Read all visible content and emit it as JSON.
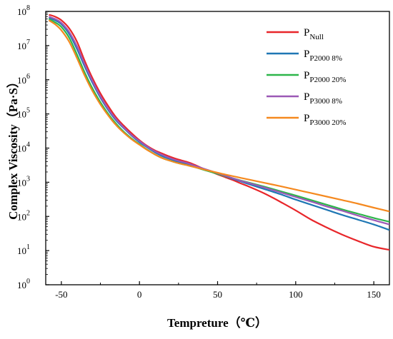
{
  "chart_data": {
    "type": "line",
    "xlabel": "Tempreture（℃）",
    "ylabel": "Complex Viscosity（Pa·S）",
    "xlim": [
      -60,
      160
    ],
    "ylim_log10": [
      0,
      8
    ],
    "y_scale": "log",
    "grid": false,
    "legend_position": "top-right",
    "x_ticks": [
      {
        "value": -50,
        "label": "-50"
      },
      {
        "value": 0,
        "label": "0"
      },
      {
        "value": 50,
        "label": "50"
      },
      {
        "value": 100,
        "label": "100"
      },
      {
        "value": 150,
        "label": "150"
      }
    ],
    "y_ticks": [
      {
        "value": 0,
        "label": "10",
        "sup": "0"
      },
      {
        "value": 1,
        "label": "10",
        "sup": "1"
      },
      {
        "value": 2,
        "label": "10",
        "sup": "2"
      },
      {
        "value": 3,
        "label": "10",
        "sup": "3"
      },
      {
        "value": 4,
        "label": "10",
        "sup": "4"
      },
      {
        "value": 5,
        "label": "10",
        "sup": "5"
      },
      {
        "value": 6,
        "label": "10",
        "sup": "6"
      },
      {
        "value": 7,
        "label": "10",
        "sup": "7"
      },
      {
        "value": 8,
        "label": "10",
        "sup": "8"
      }
    ],
    "series": [
      {
        "name": "P",
        "name_sub": "Null",
        "color": "#e8262a",
        "x": [
          -58,
          -54,
          -50,
          -45,
          -40,
          -35,
          -30,
          -25,
          -20,
          -15,
          -10,
          -5,
          0,
          5,
          10,
          15,
          20,
          25,
          30,
          35,
          40,
          45,
          50,
          55,
          60,
          65,
          70,
          80,
          90,
          100,
          110,
          120,
          130,
          140,
          150,
          160
        ],
        "y": [
          80000000.0,
          70000000.0,
          55000000.0,
          32000000.0,
          13000000.0,
          3500000.0,
          1100000.0,
          400000.0,
          170000.0,
          80000.0,
          45000.0,
          27000.0,
          17000.0,
          11500.0,
          8500.0,
          6800.0,
          5500.0,
          4600.0,
          4000.0,
          3300.0,
          2600.0,
          2100.0,
          1700.0,
          1400.0,
          1150.0,
          920.0,
          750.0,
          470.0,
          270.0,
          150.0,
          80.0,
          47.0,
          29.0,
          19.0,
          13.0,
          10.5
        ]
      },
      {
        "name": "P",
        "name_sub": "P2000 8%",
        "color": "#1f77b4",
        "x": [
          -58,
          -54,
          -50,
          -45,
          -40,
          -35,
          -30,
          -25,
          -20,
          -15,
          -10,
          -5,
          0,
          5,
          10,
          15,
          20,
          25,
          30,
          35,
          40,
          45,
          50,
          55,
          60,
          65,
          70,
          80,
          90,
          100,
          110,
          120,
          130,
          140,
          150,
          160
        ],
        "y": [
          65000000.0,
          55000000.0,
          42000000.0,
          22000000.0,
          8000000.0,
          2400000.0,
          800000.0,
          300000.0,
          130000.0,
          65000.0,
          38000.0,
          23000.0,
          15000.0,
          10500.0,
          7500.0,
          5700.0,
          4700.0,
          3900.0,
          3500.0,
          3000.0,
          2500.0,
          2100.0,
          1800.0,
          1500.0,
          1250.0,
          1050.0,
          880.0,
          630.0,
          450.0,
          310.0,
          220.0,
          155.0,
          110.0,
          80.0,
          58.0,
          40.0
        ]
      },
      {
        "name": "P",
        "name_sub": "P2000 20%",
        "color": "#2db64a",
        "x": [
          -58,
          -54,
          -50,
          -45,
          -40,
          -35,
          -30,
          -25,
          -20,
          -15,
          -10,
          -5,
          0,
          5,
          10,
          15,
          20,
          25,
          30,
          35,
          40,
          45,
          50,
          55,
          60,
          65,
          70,
          80,
          90,
          100,
          110,
          120,
          130,
          140,
          150,
          160
        ],
        "y": [
          60000000.0,
          48000000.0,
          35000000.0,
          17000000.0,
          5500000.0,
          1600000.0,
          550000.0,
          220000.0,
          100000.0,
          52000.0,
          30000.0,
          19000.0,
          13000.0,
          9000.0,
          6500.0,
          5000.0,
          4200.0,
          3600.0,
          3200.0,
          2800.0,
          2400.0,
          2050.0,
          1750.0,
          1500.0,
          1300.0,
          1120.0,
          980.0,
          740.0,
          550.0,
          410.0,
          300.0,
          220.0,
          160.0,
          120.0,
          90.0,
          70.0
        ]
      },
      {
        "name": "P",
        "name_sub": "P3000 8%",
        "color": "#9b59b6",
        "x": [
          -58,
          -54,
          -50,
          -45,
          -40,
          -35,
          -30,
          -25,
          -20,
          -15,
          -10,
          -5,
          0,
          5,
          10,
          15,
          20,
          25,
          30,
          35,
          40,
          45,
          50,
          55,
          60,
          65,
          70,
          80,
          90,
          100,
          110,
          120,
          130,
          140,
          150,
          160
        ],
        "y": [
          70000000.0,
          60000000.0,
          46000000.0,
          25000000.0,
          9500000.0,
          2800000.0,
          900000.0,
          330000.0,
          140000.0,
          70000.0,
          40000.0,
          24000.0,
          16000.0,
          11000.0,
          8000.0,
          6200.0,
          5000.0,
          4200.0,
          3700.0,
          3100.0,
          2600.0,
          2200.0,
          1850.0,
          1550.0,
          1300.0,
          1100.0,
          950.0,
          700.0,
          510.0,
          370.0,
          270.0,
          195.0,
          145.0,
          105.0,
          78.0,
          58.0
        ]
      },
      {
        "name": "P",
        "name_sub": "P3000 20%",
        "color": "#f5891f",
        "x": [
          -58,
          -54,
          -50,
          -45,
          -40,
          -35,
          -30,
          -25,
          -20,
          -15,
          -10,
          -5,
          0,
          5,
          10,
          15,
          20,
          25,
          30,
          35,
          40,
          45,
          50,
          55,
          60,
          65,
          70,
          80,
          90,
          100,
          110,
          120,
          130,
          140,
          150,
          160
        ],
        "y": [
          55000000.0,
          42000000.0,
          28000000.0,
          13000000.0,
          4300000.0,
          1300000.0,
          460000.0,
          190000.0,
          90000.0,
          47000.0,
          28000.0,
          18000.0,
          12500.0,
          8800.0,
          6500.0,
          5000.0,
          4200.0,
          3600.0,
          3200.0,
          2800.0,
          2450.0,
          2150.0,
          1900.0,
          1680.0,
          1500.0,
          1340.0,
          1200.0,
          960.0,
          770.0,
          610.0,
          480.0,
          380.0,
          300.0,
          235.0,
          180.0,
          140.0
        ]
      }
    ]
  }
}
